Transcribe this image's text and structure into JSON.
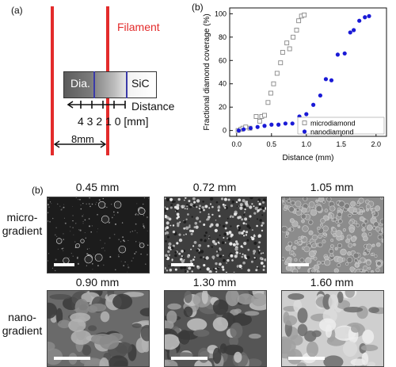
{
  "panel_a": {
    "label": "(a)",
    "filament_label": "Filament",
    "dia_label": "Dia.",
    "sic_label": "SiC",
    "distance_label": "Distance",
    "tick_label": "4 3 2 1 0 [mm]",
    "gap_label": "8mm",
    "colors": {
      "filament": "#e32b2b",
      "marker": "#3a3aa8"
    }
  },
  "chart_data": {
    "type": "scatter",
    "label": "(b)",
    "xlabel": "Distance (mm)",
    "ylabel": "Fractional diamond coverage (%)",
    "xlim": [
      -0.1,
      2.15
    ],
    "ylim": [
      -5,
      105
    ],
    "xticks": [
      "0.0",
      "0.5",
      "1.0",
      "1.5",
      "2.0"
    ],
    "yticks": [
      "0",
      "20",
      "40",
      "60",
      "80",
      "100"
    ],
    "xtick_values": [
      0.0,
      0.5,
      1.0,
      1.5,
      2.0
    ],
    "ytick_values": [
      0,
      20,
      40,
      60,
      80,
      100
    ],
    "legend_position": "bottom-right",
    "series": [
      {
        "name": "microdiamond",
        "marker": "open-square",
        "color": "#888888",
        "x": [
          0.02,
          0.06,
          0.09,
          0.13,
          0.19,
          0.28,
          0.33,
          0.36,
          0.4,
          0.45,
          0.49,
          0.53,
          0.58,
          0.63,
          0.66,
          0.72,
          0.76,
          0.81,
          0.86,
          0.89,
          0.93,
          0.97
        ],
        "y": [
          0,
          1,
          2,
          3,
          2,
          12,
          8,
          12,
          13,
          24,
          32,
          40,
          49,
          58,
          67,
          75,
          70,
          80,
          86,
          94,
          98,
          99
        ]
      },
      {
        "name": "nanodiamond",
        "marker": "filled-circle",
        "color": "#1a1ad6",
        "x": [
          0.03,
          0.1,
          0.2,
          0.3,
          0.4,
          0.5,
          0.6,
          0.7,
          0.8,
          0.9,
          1.0,
          1.1,
          1.2,
          1.28,
          1.36,
          1.45,
          1.55,
          1.63,
          1.68,
          1.76,
          1.84,
          1.9
        ],
        "y": [
          0,
          1,
          2,
          3,
          4,
          5,
          5,
          6,
          6,
          12,
          14,
          22,
          30,
          44,
          43,
          65,
          66,
          84,
          86,
          94,
          97,
          98
        ]
      }
    ]
  },
  "panel_c": {
    "label": "(b)",
    "row_micro_label": [
      "micro-",
      "gradient"
    ],
    "row_nano_label": [
      "nano-",
      "gradient"
    ],
    "micro": [
      {
        "condition": "0.45 mm"
      },
      {
        "condition": "0.72 mm"
      },
      {
        "condition": "1.05 mm"
      }
    ],
    "nano": [
      {
        "condition": "0.90 mm"
      },
      {
        "condition": "1.30 mm"
      },
      {
        "condition": "1.60 mm"
      }
    ]
  }
}
